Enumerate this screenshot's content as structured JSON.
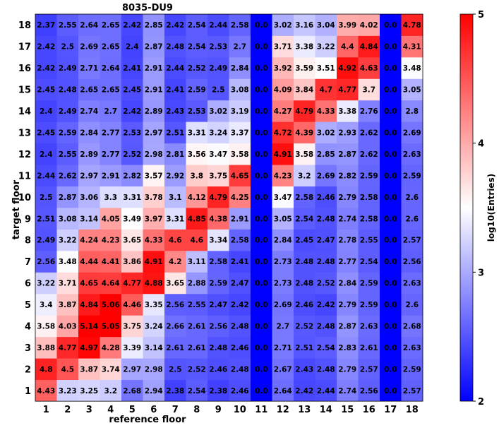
{
  "chart_data": {
    "type": "heatmap",
    "title": "8035-DU9",
    "xlabel": "reference floor",
    "ylabel": "target floor",
    "colorbar_label": "log10(Entries)",
    "x_categories": [
      "1",
      "2",
      "3",
      "4",
      "5",
      "6",
      "7",
      "8",
      "9",
      "10",
      "11",
      "12",
      "13",
      "14",
      "15",
      "16",
      "17",
      "18"
    ],
    "y_categories": [
      "1",
      "2",
      "3",
      "4",
      "5",
      "6",
      "7",
      "8",
      "9",
      "10",
      "11",
      "12",
      "13",
      "14",
      "15",
      "16",
      "17",
      "18"
    ],
    "zlim": [
      2,
      5
    ],
    "colorbar_ticks": [
      "2",
      "3",
      "4",
      "5"
    ],
    "colormap": {
      "low": "#0000ff",
      "mid": "#ffffff",
      "high": "#ff0000"
    },
    "rows": [
      {
        "y": "1",
        "values": [
          "4.43",
          "3.23",
          "3.25",
          "3.2",
          "2.68",
          "2.94",
          "2.38",
          "2.54",
          "2.38",
          "2.46",
          "0.0",
          "2.64",
          "2.42",
          "2.44",
          "2.74",
          "2.56",
          "0.0",
          "2.57"
        ]
      },
      {
        "y": "2",
        "values": [
          "4.8",
          "4.5",
          "3.87",
          "3.74",
          "2.97",
          "2.98",
          "2.5",
          "2.52",
          "2.46",
          "2.48",
          "0.0",
          "2.67",
          "2.43",
          "2.48",
          "2.79",
          "2.57",
          "0.0",
          "2.59"
        ]
      },
      {
        "y": "3",
        "values": [
          "3.88",
          "4.77",
          "4.97",
          "4.28",
          "3.39",
          "3.14",
          "2.61",
          "2.61",
          "2.48",
          "2.46",
          "0.0",
          "2.71",
          "2.51",
          "2.54",
          "2.83",
          "2.61",
          "0.0",
          "2.63"
        ]
      },
      {
        "y": "4",
        "values": [
          "3.58",
          "4.03",
          "5.14",
          "5.05",
          "3.75",
          "3.24",
          "2.66",
          "2.61",
          "2.56",
          "2.48",
          "0.0",
          "2.7",
          "2.52",
          "2.48",
          "2.87",
          "2.63",
          "0.0",
          "2.68"
        ]
      },
      {
        "y": "5",
        "values": [
          "3.4",
          "3.87",
          "4.84",
          "5.06",
          "4.46",
          "3.35",
          "2.56",
          "2.55",
          "2.47",
          "2.42",
          "0.0",
          "2.69",
          "2.46",
          "2.42",
          "2.79",
          "2.59",
          "0.0",
          "2.6"
        ]
      },
      {
        "y": "6",
        "values": [
          "3.22",
          "3.71",
          "4.65",
          "4.64",
          "4.77",
          "4.88",
          "3.65",
          "2.88",
          "2.59",
          "2.47",
          "0.0",
          "2.73",
          "2.48",
          "2.52",
          "2.84",
          "2.59",
          "0.0",
          "2.63"
        ]
      },
      {
        "y": "7",
        "values": [
          "2.56",
          "3.48",
          "4.44",
          "4.41",
          "3.86",
          "4.91",
          "4.2",
          "3.11",
          "2.58",
          "2.41",
          "0.0",
          "2.73",
          "2.48",
          "2.48",
          "2.77",
          "2.54",
          "0.0",
          "2.56"
        ]
      },
      {
        "y": "8",
        "values": [
          "2.49",
          "3.22",
          "4.24",
          "4.23",
          "3.65",
          "4.33",
          "4.6",
          "4.6",
          "3.34",
          "2.58",
          "0.0",
          "2.84",
          "2.45",
          "2.47",
          "2.78",
          "2.55",
          "0.0",
          "2.57"
        ]
      },
      {
        "y": "9",
        "values": [
          "2.51",
          "3.08",
          "3.14",
          "4.05",
          "3.49",
          "3.97",
          "3.31",
          "4.85",
          "4.38",
          "2.91",
          "0.0",
          "3.05",
          "2.54",
          "2.48",
          "2.74",
          "2.58",
          "0.0",
          "2.6"
        ]
      },
      {
        "y": "10",
        "values": [
          "2.5",
          "2.87",
          "3.06",
          "3.3",
          "3.31",
          "3.78",
          "3.1",
          "4.12",
          "4.79",
          "4.25",
          "0.0",
          "3.47",
          "2.58",
          "2.46",
          "2.79",
          "2.58",
          "0.0",
          "2.6"
        ]
      },
      {
        "y": "11",
        "values": [
          "2.44",
          "2.62",
          "2.97",
          "2.91",
          "2.82",
          "3.57",
          "2.92",
          "3.8",
          "3.75",
          "4.65",
          "0.0",
          "4.23",
          "3.2",
          "2.69",
          "2.82",
          "2.59",
          "0.0",
          "2.59"
        ]
      },
      {
        "y": "12",
        "values": [
          "2.4",
          "2.55",
          "2.89",
          "2.77",
          "2.52",
          "2.98",
          "2.81",
          "3.56",
          "3.47",
          "3.58",
          "0.0",
          "4.91",
          "3.58",
          "2.85",
          "2.87",
          "2.62",
          "0.0",
          "2.63"
        ]
      },
      {
        "y": "13",
        "values": [
          "2.45",
          "2.59",
          "2.84",
          "2.77",
          "2.53",
          "2.97",
          "2.51",
          "3.31",
          "3.24",
          "3.37",
          "0.0",
          "4.72",
          "4.39",
          "3.02",
          "2.93",
          "2.62",
          "0.0",
          "2.69"
        ]
      },
      {
        "y": "14",
        "values": [
          "2.4",
          "2.49",
          "2.74",
          "2.7",
          "2.42",
          "2.89",
          "2.43",
          "2.53",
          "3.02",
          "3.19",
          "0.0",
          "4.27",
          "4.79",
          "4.33",
          "3.38",
          "2.76",
          "0.0",
          "2.8"
        ]
      },
      {
        "y": "15",
        "values": [
          "2.45",
          "2.48",
          "2.65",
          "2.65",
          "2.45",
          "2.91",
          "2.41",
          "2.59",
          "2.5",
          "3.08",
          "0.0",
          "4.09",
          "3.84",
          "4.7",
          "4.77",
          "3.7",
          "0.0",
          "3.05"
        ]
      },
      {
        "y": "16",
        "values": [
          "2.42",
          "2.49",
          "2.71",
          "2.64",
          "2.41",
          "2.91",
          "2.44",
          "2.52",
          "2.49",
          "2.84",
          "0.0",
          "3.92",
          "3.59",
          "3.51",
          "4.92",
          "4.63",
          "0.0",
          "3.48"
        ]
      },
      {
        "y": "17",
        "values": [
          "2.42",
          "2.5",
          "2.69",
          "2.65",
          "2.4",
          "2.87",
          "2.48",
          "2.54",
          "2.53",
          "2.7",
          "0.0",
          "3.71",
          "3.38",
          "3.22",
          "4.4",
          "4.84",
          "0.0",
          "4.31"
        ]
      },
      {
        "y": "18",
        "values": [
          "2.37",
          "2.55",
          "2.64",
          "2.65",
          "2.42",
          "2.85",
          "2.42",
          "2.54",
          "2.44",
          "2.58",
          "0.0",
          "3.02",
          "3.16",
          "3.04",
          "3.99",
          "4.02",
          "0.0",
          "4.78"
        ]
      }
    ]
  }
}
